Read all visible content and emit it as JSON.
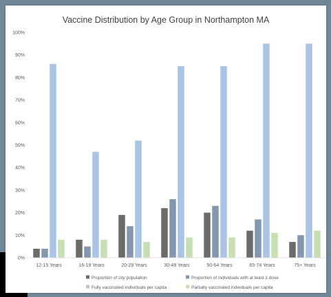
{
  "chart_data": {
    "type": "bar",
    "title": "Vaccine Distribution by Age Group in Northampton MA",
    "xlabel": "",
    "ylabel": "",
    "ylim": [
      0,
      100
    ],
    "y_ticks": [
      "0%",
      "10%",
      "20%",
      "30%",
      "40%",
      "50%",
      "60%",
      "70%",
      "80%",
      "90%",
      "100%"
    ],
    "grid": false,
    "legend_position": "bottom",
    "categories": [
      "12-15 Years",
      "16-19 Years",
      "20-29 Years",
      "30-49 Years",
      "50-64 Years",
      "65-74 Years",
      "75+ Years"
    ],
    "series": [
      {
        "name": "Proportion of city population",
        "color": "#6b6b6b",
        "values": [
          4,
          8,
          19,
          22,
          20,
          12,
          7
        ]
      },
      {
        "name": "Proportion of individuals with at least 1 dose",
        "color": "#8497b0",
        "values": [
          4,
          5,
          14,
          26,
          23,
          17,
          10
        ]
      },
      {
        "name": "Fully vaccinated individuals per capita",
        "color": "#a9c4e4",
        "values": [
          86,
          47,
          52,
          85,
          85,
          95,
          95
        ]
      },
      {
        "name": "Partially vaccinated individuals per capita",
        "color": "#c6e0b4",
        "values": [
          8,
          8,
          7,
          9,
          9,
          11,
          12
        ]
      }
    ]
  }
}
